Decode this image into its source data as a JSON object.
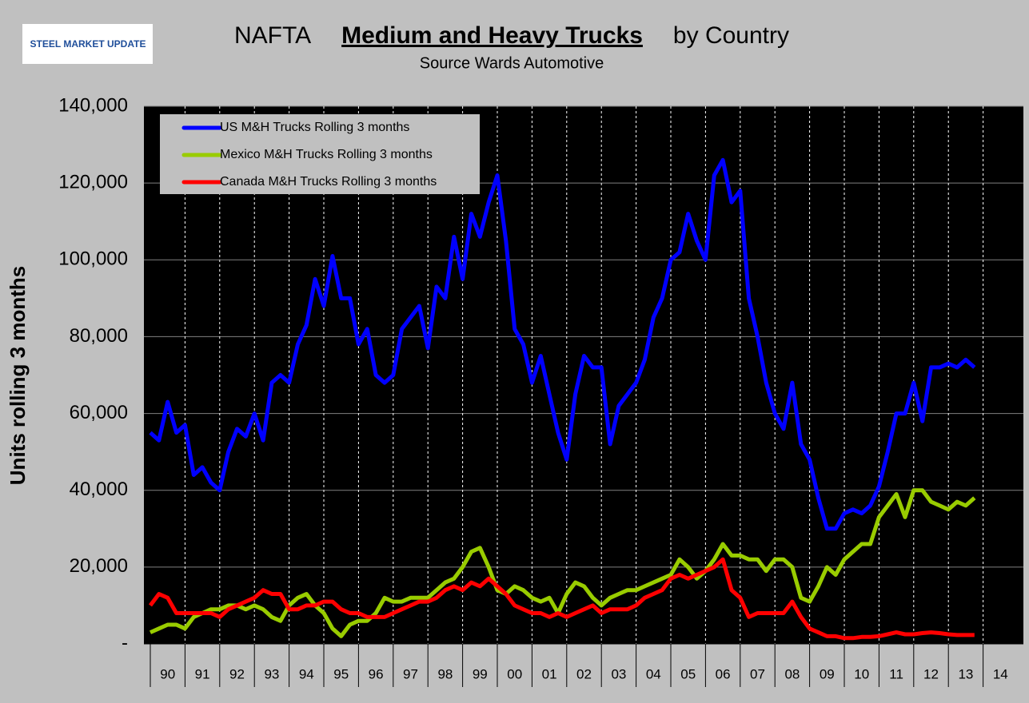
{
  "logo": {
    "text": "STEEL MARKET UPDATE"
  },
  "chart_data": {
    "type": "line",
    "title": {
      "prefix": "NAFTA",
      "main": "Medium and Heavy Trucks",
      "suffix": "by Country"
    },
    "subtitle": "Source Wards Automotive",
    "y_label": "Units rolling 3 months",
    "xlim": [
      1990,
      2015
    ],
    "xticks": [
      {
        "value": 1990,
        "label": "90"
      },
      {
        "value": 1991,
        "label": "91"
      },
      {
        "value": 1992,
        "label": "92"
      },
      {
        "value": 1993,
        "label": "93"
      },
      {
        "value": 1994,
        "label": "94"
      },
      {
        "value": 1995,
        "label": "95"
      },
      {
        "value": 1996,
        "label": "96"
      },
      {
        "value": 1997,
        "label": "97"
      },
      {
        "value": 1998,
        "label": "98"
      },
      {
        "value": 1999,
        "label": "99"
      },
      {
        "value": 2000,
        "label": "00"
      },
      {
        "value": 2001,
        "label": "01"
      },
      {
        "value": 2002,
        "label": "02"
      },
      {
        "value": 2003,
        "label": "03"
      },
      {
        "value": 2004,
        "label": "04"
      },
      {
        "value": 2005,
        "label": "05"
      },
      {
        "value": 2006,
        "label": "06"
      },
      {
        "value": 2007,
        "label": "07"
      },
      {
        "value": 2008,
        "label": "08"
      },
      {
        "value": 2009,
        "label": "09"
      },
      {
        "value": 2010,
        "label": "10"
      },
      {
        "value": 2011,
        "label": "11"
      },
      {
        "value": 2012,
        "label": "12"
      },
      {
        "value": 2013,
        "label": "13"
      },
      {
        "value": 2014,
        "label": "14"
      }
    ],
    "ylim": [
      0,
      140000
    ],
    "yticks": [
      {
        "value": 0,
        "label": "-"
      },
      {
        "value": 20000,
        "label": "20,000"
      },
      {
        "value": 40000,
        "label": "40,000"
      },
      {
        "value": 60000,
        "label": "60,000"
      },
      {
        "value": 80000,
        "label": "80,000"
      },
      {
        "value": 100000,
        "label": "100,000"
      },
      {
        "value": 120000,
        "label": "120,000"
      },
      {
        "value": 140000,
        "label": "140,000"
      }
    ],
    "grid": true,
    "legend": "top-left",
    "x": [
      1990,
      1990.25,
      1990.5,
      1990.75,
      1991,
      1991.25,
      1991.5,
      1991.75,
      1992,
      1992.25,
      1992.5,
      1992.75,
      1993,
      1993.25,
      1993.5,
      1993.75,
      1994,
      1994.25,
      1994.5,
      1994.75,
      1995,
      1995.25,
      1995.5,
      1995.75,
      1996,
      1996.25,
      1996.5,
      1996.75,
      1997,
      1997.25,
      1997.5,
      1997.75,
      1998,
      1998.25,
      1998.5,
      1998.75,
      1999,
      1999.25,
      1999.5,
      1999.75,
      2000,
      2000.25,
      2000.5,
      2000.75,
      2001,
      2001.25,
      2001.5,
      2001.75,
      2002,
      2002.25,
      2002.5,
      2002.75,
      2003,
      2003.25,
      2003.5,
      2003.75,
      2004,
      2004.25,
      2004.5,
      2004.75,
      2005,
      2005.25,
      2005.5,
      2005.75,
      2006,
      2006.25,
      2006.5,
      2006.75,
      2007,
      2007.25,
      2007.5,
      2007.75,
      2008,
      2008.25,
      2008.5,
      2008.75,
      2009,
      2009.25,
      2009.5,
      2009.75,
      2010,
      2010.25,
      2010.5,
      2010.75,
      2011,
      2011.25,
      2011.5,
      2011.75,
      2012,
      2012.25,
      2012.5,
      2012.75,
      2013,
      2013.25,
      2013.5,
      2013.75
    ],
    "series": [
      {
        "name": "US M&H Trucks Rolling 3 months",
        "color": "#0000ff",
        "values": [
          55000,
          53000,
          63000,
          55000,
          57000,
          44000,
          46000,
          42000,
          40000,
          50000,
          56000,
          54000,
          60000,
          53000,
          68000,
          70000,
          68000,
          78000,
          83000,
          95000,
          88000,
          101000,
          90000,
          90000,
          78000,
          82000,
          70000,
          68000,
          70000,
          82000,
          85000,
          88000,
          77000,
          93000,
          90000,
          106000,
          95000,
          112000,
          106000,
          115000,
          122000,
          105000,
          82000,
          78000,
          68000,
          75000,
          65000,
          55000,
          48000,
          65000,
          75000,
          72000,
          72000,
          52000,
          62000,
          65000,
          68000,
          74000,
          85000,
          90000,
          100000,
          102000,
          112000,
          105000,
          100000,
          122000,
          126000,
          115000,
          118000,
          90000,
          80000,
          68000,
          60000,
          56000,
          68000,
          52000,
          48000,
          38000,
          30000,
          30000,
          34000,
          35000,
          34000,
          36000,
          41000,
          50000,
          60000,
          60000,
          68000,
          58000,
          72000,
          72000,
          73000,
          72000,
          74000,
          72000
        ]
      },
      {
        "name": "Mexico M&H Trucks Rolling 3 months",
        "color": "#99cc00",
        "values": [
          3000,
          4000,
          5000,
          5000,
          4000,
          7000,
          8000,
          9000,
          9000,
          10000,
          10000,
          9000,
          10000,
          9000,
          7000,
          6000,
          10000,
          12000,
          13000,
          10000,
          8000,
          4000,
          2000,
          5000,
          6000,
          6000,
          8000,
          12000,
          11000,
          11000,
          12000,
          12000,
          12000,
          14000,
          16000,
          17000,
          20000,
          24000,
          25000,
          20000,
          14000,
          13000,
          15000,
          14000,
          12000,
          11000,
          12000,
          8000,
          13000,
          16000,
          15000,
          12000,
          10000,
          12000,
          13000,
          14000,
          14000,
          15000,
          16000,
          17000,
          18000,
          22000,
          20000,
          17000,
          19000,
          22000,
          26000,
          23000,
          23000,
          22000,
          22000,
          19000,
          22000,
          22000,
          20000,
          12000,
          11000,
          15000,
          20000,
          18000,
          22000,
          24000,
          26000,
          26000,
          33000,
          36000,
          39000,
          33000,
          40000,
          40000,
          37000,
          36000,
          35000,
          37000,
          36000,
          38000
        ]
      },
      {
        "name": "Canada M&H Trucks Rolling 3 months",
        "color": "#ff0000",
        "values": [
          10000,
          13000,
          12000,
          8000,
          8000,
          8000,
          8000,
          8000,
          7000,
          9000,
          10000,
          11000,
          12000,
          14000,
          13000,
          13000,
          9000,
          9000,
          10000,
          10000,
          11000,
          11000,
          9000,
          8000,
          8000,
          7000,
          7000,
          7000,
          8000,
          9000,
          10000,
          11000,
          11000,
          12000,
          14000,
          15000,
          14000,
          16000,
          15000,
          17000,
          15000,
          13000,
          10000,
          9000,
          8000,
          8000,
          7000,
          8000,
          7000,
          8000,
          9000,
          10000,
          8000,
          9000,
          9000,
          9000,
          10000,
          12000,
          13000,
          14000,
          17000,
          18000,
          17000,
          18000,
          19000,
          20000,
          22000,
          14000,
          12000,
          7000,
          8000,
          8000,
          8000,
          8000,
          11000,
          7000,
          4000,
          3000,
          2000,
          2000,
          1500,
          1500,
          1800,
          1800,
          2000,
          2500,
          3000,
          2500,
          2500,
          2800,
          3000,
          2800,
          2500,
          2300,
          2300,
          2300
        ]
      }
    ]
  }
}
